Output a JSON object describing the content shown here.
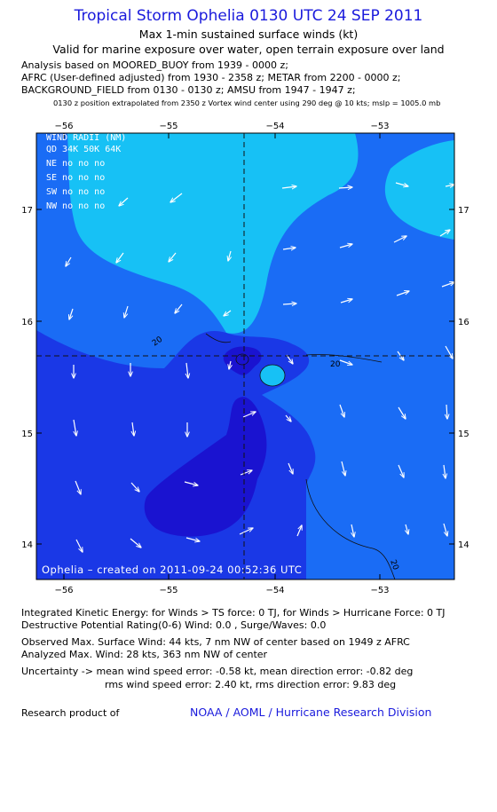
{
  "header": {
    "title": "Tropical Storm Ophelia 0130 UTC 24 SEP 2011",
    "subtitle": "Max 1-min sustained surface winds (kt)",
    "valid_line": "Valid for marine exposure over water, open terrain exposure over land"
  },
  "analysis_lines": [
    "Analysis based on MOORED_BUOY from 1939 - 0000 z;",
    "AFRC (User-defined adjusted) from 1930 - 2358 z; METAR from 2200 - 0000 z;",
    "BACKGROUND_FIELD from 0130 - 0130 z; AMSU from 1947 - 1947 z;"
  ],
  "position_note": "0130 z position extrapolated from 2350 z Vortex wind center using 290 deg @ 10 kts; mslp = 1005.0 mb",
  "map": {
    "lon_ticks": [
      "−56",
      "−55",
      "−54",
      "−53"
    ],
    "lat_ticks": [
      "17",
      "16",
      "15",
      "14"
    ],
    "center_lon": -54.3,
    "center_lat": 15.68,
    "wind_radii": {
      "header": "WIND RADII (NM)",
      "columns": "QD  34K 50K 64K",
      "rows": [
        "NE  no  no  no",
        "SE  no  no  no",
        "SW  no  no  no",
        "NW  no  no  no"
      ]
    },
    "credit": "Ophelia – created on 2011-09-24 00:52:36 UTC",
    "contour_labels": [
      "20",
      "20",
      "20"
    ],
    "colors": {
      "light": "#17c1f5",
      "medium": "#1a6cf5",
      "dark": "#1a38e6",
      "darkest": "#1a13d0"
    }
  },
  "stats": {
    "ike": "Integrated Kinetic Energy:  for Winds > TS force: 0 TJ,  for Winds > Hurricane Force: 0 TJ",
    "dpr": "Destructive Potential Rating(0-6)   Wind: 0.0 , Surge/Waves: 0.0",
    "observed": "Observed Max. Surface Wind: 44 kts, 7 nm NW of center based on 1949 z AFRC",
    "analyzed": "Analyzed Max. Wind: 28 kts, 363 nm NW of center",
    "uncertainty1": "Uncertainty -> mean wind speed error:  -0.58 kt,   mean direction error:  -0.82 deg",
    "uncertainty2": "rms wind speed error: 2.40 kt,   rms direction error: 9.83 deg"
  },
  "footer": {
    "research_label": "Research product of",
    "org": "NOAA / AOML / Hurricane Research Division"
  }
}
